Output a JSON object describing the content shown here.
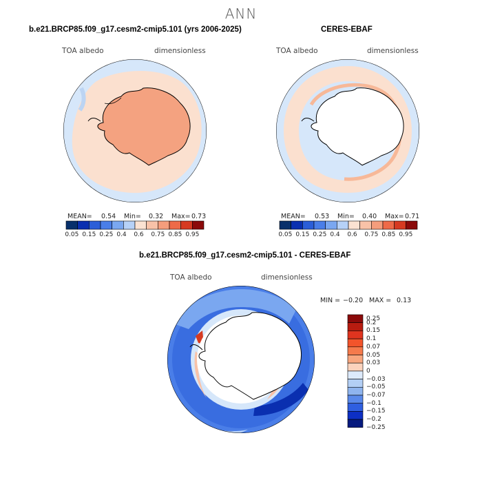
{
  "figure": {
    "title": "ANN"
  },
  "colors": {
    "levels_12": [
      "#08306b",
      "#0a2fb0",
      "#2b5ed8",
      "#4a7ee8",
      "#7aa7f0",
      "#b6d1f7",
      "#fbe2d2",
      "#f9c2a8",
      "#f59d7c",
      "#ee6a48",
      "#d63a21",
      "#8b0a0a"
    ],
    "levels_14": [
      "#8b0a0a",
      "#b81c10",
      "#e0341f",
      "#f2542b",
      "#f57a4c",
      "#f8a67e",
      "#fcd3bd",
      "#ddeafb",
      "#b3cff5",
      "#8fb4ee",
      "#5a89ea",
      "#2f5fe0",
      "#0d2fc4",
      "#061a7f"
    ],
    "continent_fill": "#ffffff",
    "ocean_light": "#d6e7fa",
    "coast": "#000000"
  },
  "panels": {
    "model": {
      "title": "b.e21.BRCP85.f09_g17.cesm2-cmip5.101 (yrs 2006-2025)",
      "left_label": "TOA albedo",
      "right_label": "dimensionless",
      "mean_label": "MEAN=",
      "mean": "0.54",
      "min_label": "Min=",
      "min": "0.32",
      "max_label": "Max=",
      "max": "0.73"
    },
    "obs": {
      "title": "CERES-EBAF",
      "left_label": "TOA albedo",
      "right_label": "dimensionless",
      "mean_label": "MEAN=",
      "mean": "0.53",
      "min_label": "Min=",
      "min": "0.40",
      "max_label": "Max=",
      "max": "0.71"
    },
    "diff": {
      "title": "b.e21.BRCP85.f09_g17.cesm2-cmip5.101 - CERES-EBAF",
      "left_label": "TOA albedo",
      "right_label": "dimensionless",
      "min_label": "MIN =",
      "min": "−0.20",
      "max_label": "MAX =",
      "max": "0.13"
    }
  },
  "chart_data": [
    {
      "type": "heatmap",
      "title": "b.e21.BRCP85.f09_g17.cesm2-cmip5.101 (yrs 2006-2025)",
      "variable": "TOA albedo",
      "units": "dimensionless",
      "contour_levels": [
        "0.05",
        "0.15",
        "0.25",
        "0.4",
        "0.6",
        "0.75",
        "0.85",
        "0.95"
      ],
      "stats": {
        "mean": 0.54,
        "min": 0.32,
        "max": 0.73
      }
    },
    {
      "type": "heatmap",
      "title": "CERES-EBAF",
      "variable": "TOA albedo",
      "units": "dimensionless",
      "contour_levels": [
        "0.05",
        "0.15",
        "0.25",
        "0.4",
        "0.6",
        "0.75",
        "0.85",
        "0.95"
      ],
      "stats": {
        "mean": 0.53,
        "min": 0.4,
        "max": 0.71
      }
    },
    {
      "type": "heatmap",
      "title": "b.e21.BRCP85.f09_g17.cesm2-cmip5.101 - CERES-EBAF",
      "variable": "TOA albedo",
      "units": "dimensionless",
      "contour_levels": [
        "0.25",
        "0.2",
        "0.15",
        "0.1",
        "0.07",
        "0.05",
        "0.03",
        "0",
        "−0.03",
        "−0.05",
        "−0.07",
        "−0.1",
        "−0.15",
        "−0.2",
        "−0.25"
      ],
      "stats": {
        "min": -0.2,
        "max": 0.13
      }
    }
  ]
}
